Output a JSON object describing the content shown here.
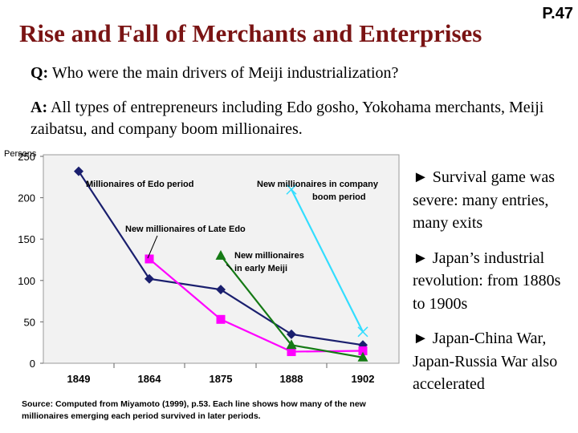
{
  "page_number": "P.47",
  "title": "Rise and Fall of Merchants and Enterprises",
  "question": {
    "lead": "Q:",
    "text": " Who were the main drivers of Meiji industrialization?"
  },
  "answer": {
    "lead": "A:",
    "text": " All types of entrepreneurs including Edo gosho, Yokohama merchants, Meiji zaibatsu, and company boom millionaires."
  },
  "bullets": [
    {
      "marker": "►",
      "text": " Survival game was severe: many entries, many exits"
    },
    {
      "marker": "►",
      "text": " Japan’s industrial revolution: from 1880s to 1900s"
    },
    {
      "marker": "►",
      "text": " Japan-China War, Japan-Russia War also accelerated"
    }
  ],
  "source_note": "Source: Computed from Miyamoto (1999), p.53. Each line shows how many of the new millionaires emerging each period survived in later periods.",
  "chart_data": {
    "type": "line",
    "ylabel": "Persons",
    "ylim": [
      0,
      250
    ],
    "yticks": [
      0,
      50,
      100,
      150,
      200,
      250
    ],
    "categories": [
      "1849",
      "1864",
      "1875",
      "1888",
      "1902"
    ],
    "series": [
      {
        "name": "Millionaires of Edo period",
        "color": "#1a1f6e",
        "marker": "diamond",
        "values": [
          232,
          102,
          89,
          35,
          22
        ]
      },
      {
        "name": "New millionaires of Late Edo",
        "color": "#ff00ff",
        "marker": "square",
        "values": [
          null,
          126,
          53,
          14,
          15
        ]
      },
      {
        "name": "New millionaires in early Meiji",
        "color": "#157a15",
        "marker": "triangle",
        "values": [
          null,
          null,
          130,
          22,
          7
        ]
      },
      {
        "name": "New millionaires in company boom period",
        "color": "#33ddff",
        "marker": "x",
        "values": [
          null,
          null,
          null,
          210,
          38
        ]
      }
    ],
    "annotations": [
      {
        "series": 0,
        "lines": [
          "Millionaires of Edo period"
        ]
      },
      {
        "series": 1,
        "lines": [
          "New millionaires of Late Edo"
        ]
      },
      {
        "series": 2,
        "lines": [
          "New millionaires",
          "in early Meiji"
        ]
      },
      {
        "series": 3,
        "lines": [
          "New millionaires in company",
          "boom period"
        ]
      }
    ]
  }
}
